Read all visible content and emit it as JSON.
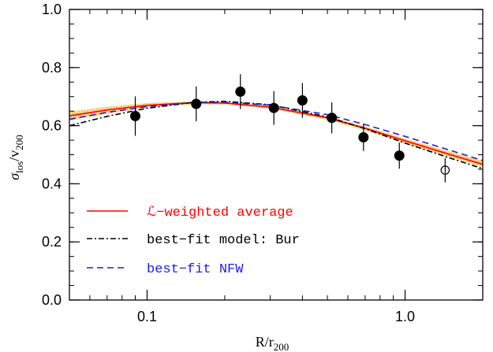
{
  "chart_data": {
    "type": "scatter",
    "xscale": "log",
    "xlim": [
      0.05,
      2.0
    ],
    "ylim": [
      0.0,
      1.0
    ],
    "xlabel": {
      "base": "R/r",
      "sub": "200"
    },
    "ylabel": {
      "sigma": "σ",
      "sigma_sub": "los",
      "slash": "/",
      "v": "v",
      "v_sub": "200"
    },
    "x_major_ticks": [
      0.1,
      1.0
    ],
    "x_tick_labels": [
      "0.1",
      "1.0"
    ],
    "y_major_ticks": [
      0.0,
      0.2,
      0.4,
      0.6,
      0.8,
      1.0
    ],
    "y_tick_labels": [
      "0.0",
      "0.2",
      "0.4",
      "0.6",
      "0.8",
      "1.0"
    ],
    "data_points": [
      {
        "x": 0.09,
        "y": 0.633,
        "yerr": [
          0.068,
          0.068
        ],
        "filled": true
      },
      {
        "x": 0.155,
        "y": 0.675,
        "yerr": [
          0.06,
          0.06
        ],
        "filled": true
      },
      {
        "x": 0.23,
        "y": 0.717,
        "yerr": [
          0.06,
          0.06
        ],
        "filled": true
      },
      {
        "x": 0.31,
        "y": 0.661,
        "yerr": [
          0.058,
          0.058
        ],
        "filled": true
      },
      {
        "x": 0.4,
        "y": 0.687,
        "yerr": [
          0.06,
          0.06
        ],
        "filled": true
      },
      {
        "x": 0.52,
        "y": 0.627,
        "yerr": [
          0.053,
          0.053
        ],
        "filled": true
      },
      {
        "x": 0.69,
        "y": 0.56,
        "yerr": [
          0.047,
          0.047
        ],
        "filled": true
      },
      {
        "x": 0.95,
        "y": 0.497,
        "yerr": [
          0.045,
          0.045
        ],
        "filled": true
      },
      {
        "x": 1.43,
        "y": 0.447,
        "yerr": [
          0.042,
          0.042
        ],
        "filled": false
      }
    ],
    "band": {
      "color": "#f2a81e",
      "x": [
        0.05,
        0.07,
        0.1,
        0.15,
        0.2,
        0.3,
        0.5,
        0.7,
        1.0,
        1.5,
        2.0
      ],
      "upper": [
        0.648,
        0.665,
        0.678,
        0.683,
        0.681,
        0.668,
        0.632,
        0.597,
        0.555,
        0.51,
        0.478
      ],
      "lower": [
        0.618,
        0.642,
        0.662,
        0.674,
        0.673,
        0.658,
        0.62,
        0.583,
        0.538,
        0.49,
        0.456
      ]
    },
    "series": [
      {
        "name": "ℒ−weighted average",
        "color": "#ff0000",
        "dash": "solid",
        "x": [
          0.05,
          0.07,
          0.1,
          0.15,
          0.2,
          0.3,
          0.5,
          0.7,
          1.0,
          1.5,
          2.0
        ],
        "y": [
          0.634,
          0.654,
          0.67,
          0.679,
          0.678,
          0.664,
          0.627,
          0.591,
          0.548,
          0.5,
          0.467
        ]
      },
      {
        "name": "best−fit model: Bur",
        "color": "#000000",
        "dash": "dashdot",
        "x": [
          0.05,
          0.07,
          0.1,
          0.15,
          0.2,
          0.3,
          0.5,
          0.7,
          1.0,
          1.5,
          2.0
        ],
        "y": [
          0.6,
          0.632,
          0.66,
          0.68,
          0.684,
          0.672,
          0.63,
          0.59,
          0.54,
          0.488,
          0.452
        ]
      },
      {
        "name": "best−fit NFW",
        "color": "#1f1fd6",
        "dash": "dashed",
        "x": [
          0.05,
          0.07,
          0.1,
          0.15,
          0.2,
          0.3,
          0.5,
          0.7,
          1.0,
          1.5,
          2.0
        ],
        "y": [
          0.622,
          0.646,
          0.666,
          0.68,
          0.681,
          0.671,
          0.638,
          0.604,
          0.563,
          0.515,
          0.48
        ]
      }
    ],
    "legend_placement": "bottom-left"
  }
}
